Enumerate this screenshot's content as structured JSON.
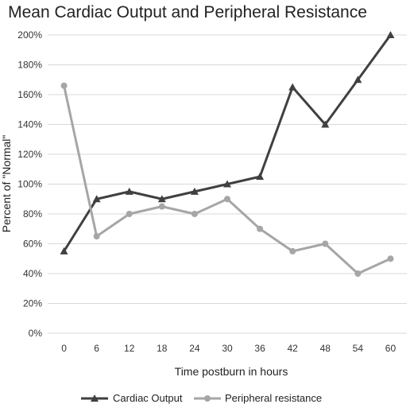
{
  "chart_data": {
    "type": "line",
    "title": "Mean Cardiac Output and Peripheral Resistance",
    "xlabel": "Time postburn in hours",
    "ylabel": "Percent of \"Normal\"",
    "x": [
      "0",
      "6",
      "12",
      "18",
      "24",
      "30",
      "36",
      "42",
      "48",
      "54",
      "60"
    ],
    "ylim": [
      0,
      200
    ],
    "yticks": [
      "0%",
      "20%",
      "40%",
      "60%",
      "80%",
      "100%",
      "120%",
      "140%",
      "160%",
      "180%",
      "200%"
    ],
    "grid": true,
    "legend_position": "bottom",
    "series": [
      {
        "name": "Cardiac Output",
        "marker": "triangle",
        "color": "#404040",
        "values": [
          55,
          90,
          95,
          90,
          95,
          100,
          105,
          165,
          140,
          170,
          200
        ]
      },
      {
        "name": "Peripheral resistance",
        "marker": "circle",
        "color": "#a6a6a6",
        "values": [
          166,
          65,
          80,
          85,
          80,
          90,
          70,
          55,
          60,
          40,
          50
        ]
      }
    ]
  }
}
